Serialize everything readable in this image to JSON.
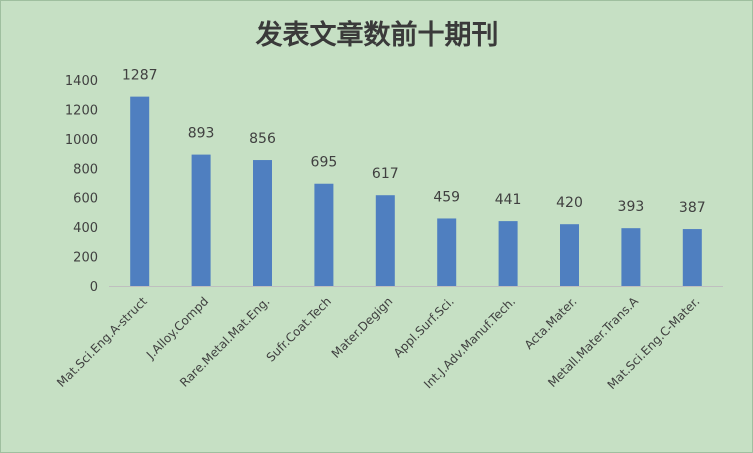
{
  "chart_data": {
    "type": "bar",
    "title": "发表文章数前十期刊",
    "categories": [
      "Mat.Sci.Eng.A-struct",
      "J.Alloy.Compd",
      "Rare.Metal.Mat.Eng.",
      "Sufr.Coat.Tech",
      "Mater.Degign",
      "Appl.Surf.Sci.",
      "Int.J.Adv.Manuf.Tech.",
      "Acta.Mater.",
      "Metall.Mater.Trans.A",
      "Mat.Sci.Eng.C-Mater."
    ],
    "values": [
      1287,
      893,
      856,
      695,
      617,
      459,
      441,
      420,
      393,
      387
    ],
    "yticks": [
      0,
      200,
      400,
      600,
      800,
      1000,
      1200,
      1400
    ],
    "ylim": [
      0,
      1400
    ],
    "grid": false,
    "legend": "none",
    "bar_color": "#4f7fc0",
    "background_color": "#c6e0c4"
  }
}
